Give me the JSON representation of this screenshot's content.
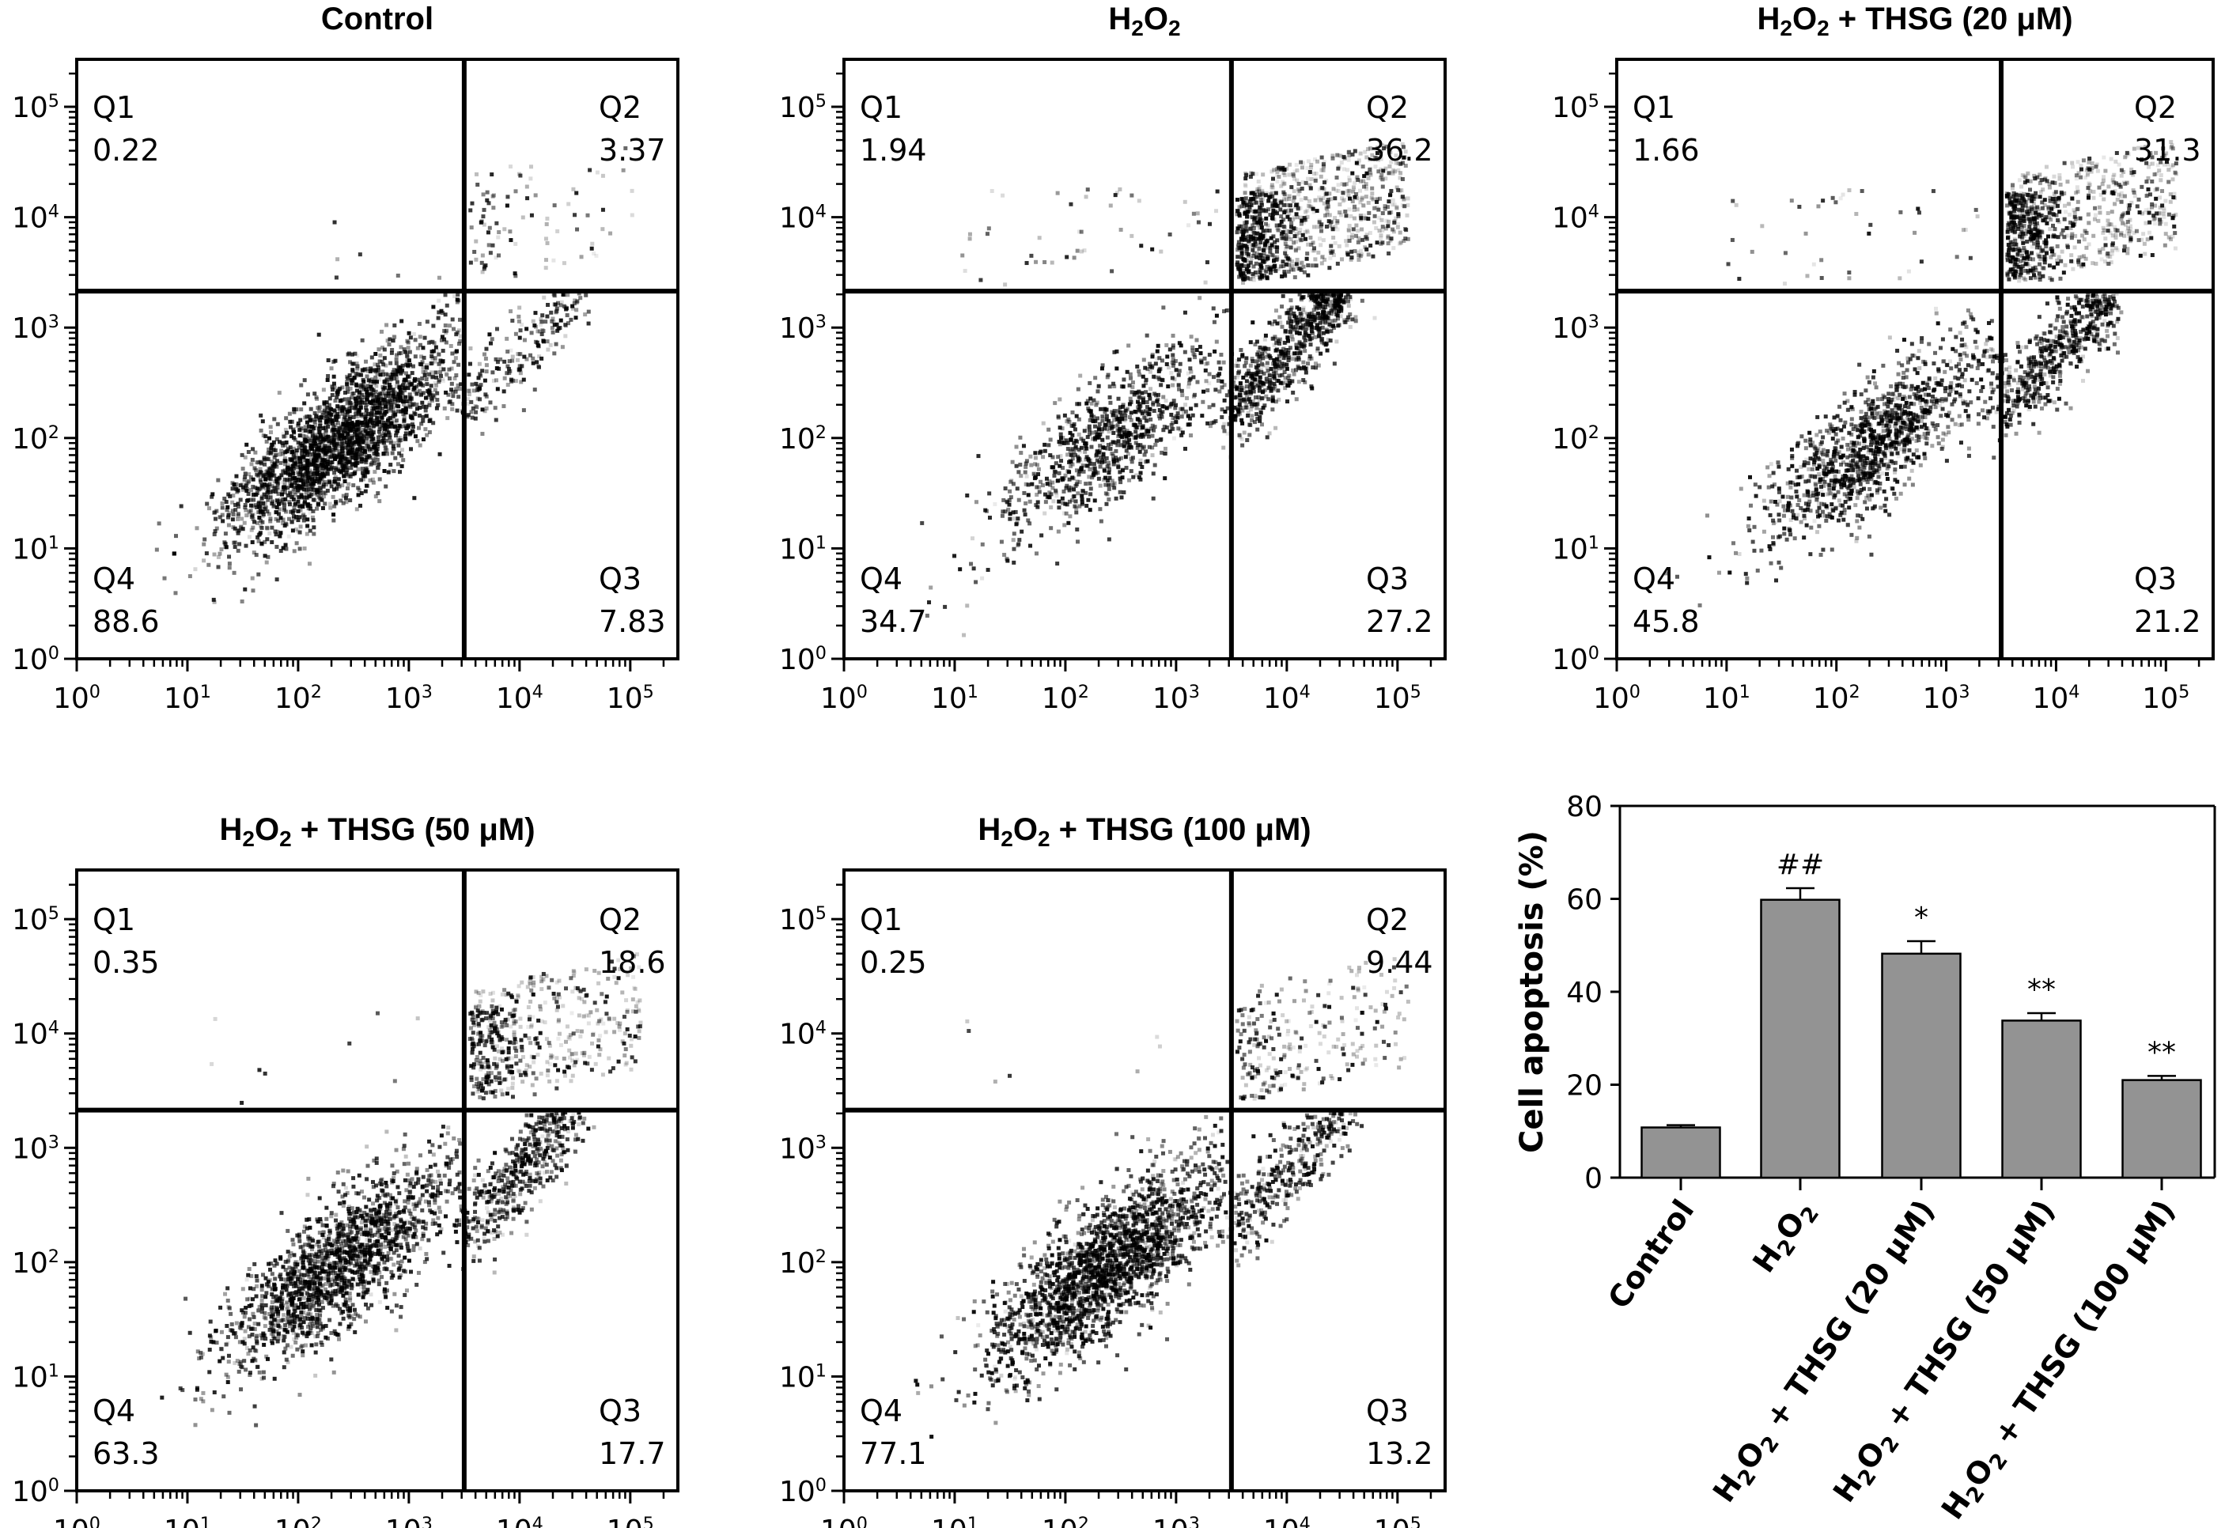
{
  "figure": {
    "panels": [
      {
        "id": "control",
        "title": "Control",
        "title_sub": [],
        "quadrants": {
          "Q1": "0.22",
          "Q2": "3.37",
          "Q3": "7.83",
          "Q4": "88.6"
        }
      },
      {
        "id": "h2o2",
        "title": "H2O2",
        "title_sub": [
          1,
          3
        ],
        "quadrants": {
          "Q1": "1.94",
          "Q2": "36.2",
          "Q3": "27.2",
          "Q4": "34.7"
        }
      },
      {
        "id": "thsg20",
        "title": "H2O2 + THSG (20 μM)",
        "title_sub": [
          1,
          3
        ],
        "quadrants": {
          "Q1": "1.66",
          "Q2": "31.3",
          "Q3": "21.2",
          "Q4": "45.8"
        }
      },
      {
        "id": "thsg50",
        "title": "H2O2 + THSG (50 μM)",
        "title_sub": [
          1,
          3
        ],
        "quadrants": {
          "Q1": "0.35",
          "Q2": "18.6",
          "Q3": "17.7",
          "Q4": "63.3"
        }
      },
      {
        "id": "thsg100",
        "title": "H2O2 + THSG (100 μM)",
        "title_sub": [
          1,
          3
        ],
        "quadrants": {
          "Q1": "0.25",
          "Q2": "9.44",
          "Q3": "13.2",
          "Q4": "77.1"
        }
      }
    ],
    "quadrant_names": [
      "Q1",
      "Q2",
      "Q3",
      "Q4"
    ],
    "flow_axis": {
      "scale": "log",
      "tick_labels": [
        "10^0",
        "10^1",
        "10^2",
        "10^3",
        "10^4",
        "10^5"
      ],
      "range_decades": [
        0,
        5.43
      ],
      "gate_x_decades": 3.5,
      "gate_y_decades": 3.33
    }
  },
  "chart_data": [
    {
      "type": "scatter",
      "subtype": "flow-cytometry-quadrant-plots",
      "panels": [
        "Control",
        "H2O2",
        "H2O2 + THSG (20 μM)",
        "H2O2 + THSG (50 μM)",
        "H2O2 + THSG (100 μM)"
      ],
      "quadrant_percent": {
        "Control": {
          "Q1": 0.22,
          "Q2": 3.37,
          "Q3": 7.83,
          "Q4": 88.6
        },
        "H2O2": {
          "Q1": 1.94,
          "Q2": 36.2,
          "Q3": 27.2,
          "Q4": 34.7
        },
        "H2O2 + THSG (20 μM)": {
          "Q1": 1.66,
          "Q2": 31.3,
          "Q3": 21.2,
          "Q4": 45.8
        },
        "H2O2 + THSG (50 μM)": {
          "Q1": 0.35,
          "Q2": 18.6,
          "Q3": 17.7,
          "Q4": 63.3
        },
        "H2O2 + THSG (100 μM)": {
          "Q1": 0.25,
          "Q2": 9.44,
          "Q3": 13.2,
          "Q4": 77.1
        }
      },
      "x_ticks": [
        "10^0",
        "10^1",
        "10^2",
        "10^3",
        "10^4",
        "10^5"
      ],
      "y_ticks": [
        "10^0",
        "10^1",
        "10^2",
        "10^3",
        "10^4",
        "10^5"
      ],
      "xlim_log10": [
        0,
        5.43
      ],
      "ylim_log10": [
        0,
        5.43
      ]
    },
    {
      "type": "bar",
      "title": "",
      "categories": [
        "Control",
        "H2O2",
        "H2O2 + THSG (20 μM)",
        "H2O2 + THSG (50 μM)",
        "H2O2 + THSG (100 μM)"
      ],
      "values": [
        10.8,
        59.8,
        48.2,
        33.8,
        21.0
      ],
      "errors": [
        0.5,
        2.5,
        2.7,
        1.6,
        0.9
      ],
      "significance": [
        "",
        "##",
        "*",
        "**",
        "**"
      ],
      "xlabel": "",
      "ylabel": "Cell apoptosis (%)",
      "ylim": [
        0,
        80
      ],
      "yticks": [
        0,
        20,
        40,
        60,
        80
      ],
      "bar_color": "#939393",
      "grid": false
    }
  ]
}
